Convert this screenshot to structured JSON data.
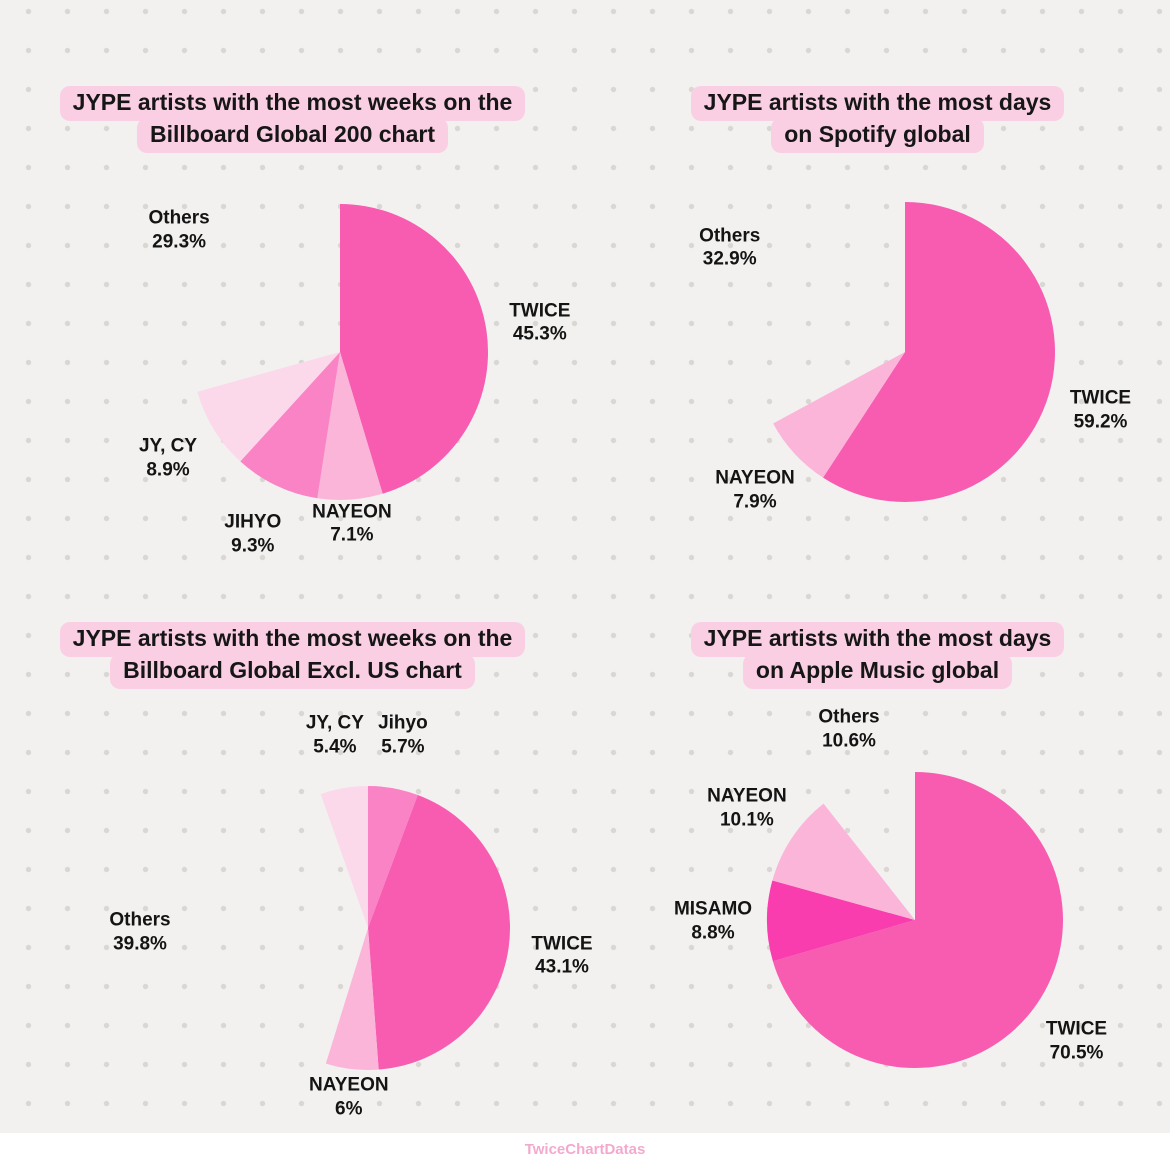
{
  "page": {
    "background_color": "#f2f1ef",
    "dot_color": "#d9d6d3",
    "title_highlight_color": "#facfe3",
    "watermark": "TwiceChartDatas",
    "watermark_color": "#f29bc6"
  },
  "chart_data": [
    {
      "type": "pie",
      "title_line1": "JYPE artists with the most weeks on the",
      "title_line2": "Billboard Global 200 chart",
      "start_angle_deg": 0,
      "direction": "clockwise",
      "legend": "none",
      "slices": [
        {
          "label": "TWICE",
          "pct_label": "45.3%",
          "value": 45.3,
          "color": "#f75cb1"
        },
        {
          "label": "NAYEON",
          "pct_label": "7.1%",
          "value": 7.1,
          "color": "#fbb5d9",
          "label_dist": 172
        },
        {
          "label": "JIHYO",
          "pct_label": "9.3%",
          "value": 9.3,
          "color": "#f983c5"
        },
        {
          "label": "JY, CY",
          "pct_label": "8.9%",
          "value": 8.9,
          "color": "#fbd8ea"
        },
        {
          "label": "Others",
          "pct_label": "29.3%",
          "value": 29.3,
          "color": "none"
        }
      ]
    },
    {
      "type": "pie",
      "title_line1": "JYPE artists with the most days",
      "title_line2": "on Spotify global",
      "start_angle_deg": 0,
      "direction": "clockwise",
      "legend": "none",
      "slices": [
        {
          "label": "TWICE",
          "pct_label": "59.2%",
          "value": 59.2,
          "color": "#f75cb1"
        },
        {
          "label": "NAYEON",
          "pct_label": "7.9%",
          "value": 7.9,
          "color": "#fbb5d9"
        },
        {
          "label": "Others",
          "pct_label": "32.9%",
          "value": 32.9,
          "color": "none"
        }
      ]
    },
    {
      "type": "pie",
      "title_line1": "JYPE artists with the most weeks on the",
      "title_line2": "Billboard Global Excl. US chart",
      "start_angle_deg": 0,
      "direction": "clockwise",
      "legend": "none",
      "slices": [
        {
          "label": "Jihyo",
          "pct_label": "5.7%",
          "value": 5.7,
          "color": "#f983c5"
        },
        {
          "label": "TWICE",
          "pct_label": "43.1%",
          "value": 43.1,
          "color": "#f75cb1"
        },
        {
          "label": "NAYEON",
          "pct_label": "6%",
          "value": 6.0,
          "color": "#fbb5d9",
          "label_dist": 170
        },
        {
          "label": "Others",
          "pct_label": "39.8%",
          "value": 39.8,
          "color": "none",
          "label_dist": 228
        },
        {
          "label": "JY, CY",
          "pct_label": "5.4%",
          "value": 5.4,
          "color": "#fbd8ea"
        }
      ]
    },
    {
      "type": "pie",
      "title_line1": "JYPE artists with the most days",
      "title_line2": "on Apple Music global",
      "start_angle_deg": 0,
      "direction": "clockwise",
      "legend": "none",
      "slices": [
        {
          "label": "TWICE",
          "pct_label": "70.5%",
          "value": 70.5,
          "color": "#f75cb1"
        },
        {
          "label": "MISAMO",
          "pct_label": "8.8%",
          "value": 8.8,
          "color": "#f93cae"
        },
        {
          "label": "NAYEON",
          "pct_label": "10.1%",
          "value": 10.1,
          "color": "#fbb5d9"
        },
        {
          "label": "Others",
          "pct_label": "10.6%",
          "value": 10.6,
          "color": "none"
        }
      ]
    }
  ]
}
